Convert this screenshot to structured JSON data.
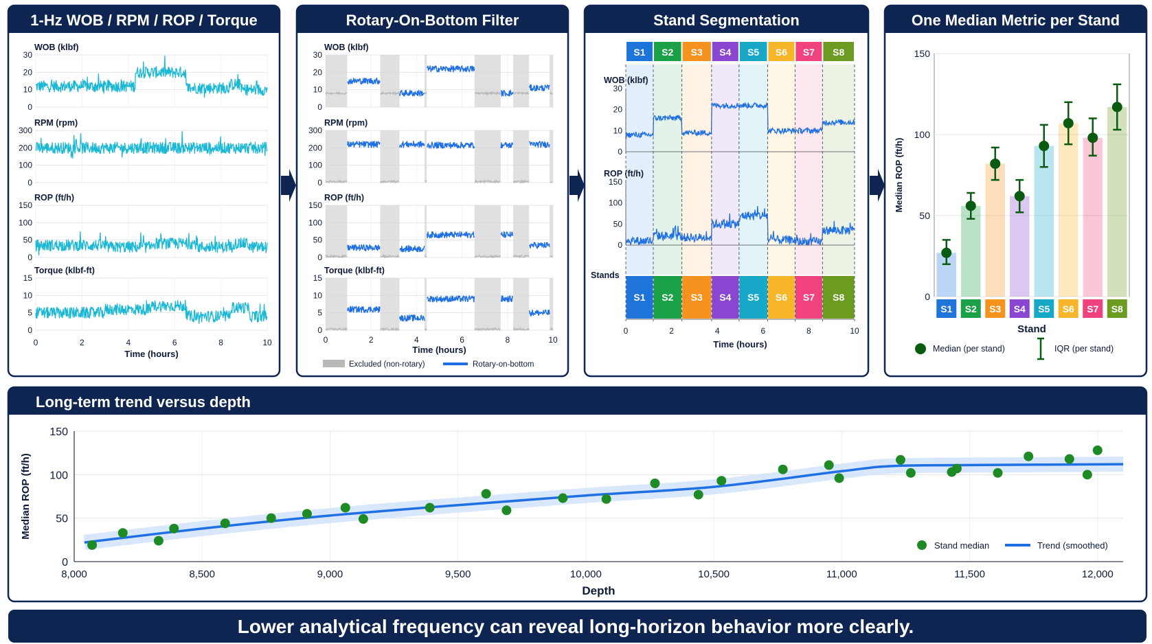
{
  "colors": {
    "navy": "#0d2550",
    "cyan": "#1bb8d6",
    "blue": "#1f6fe5",
    "gray": "#b8b8b8",
    "green": "#1e8a25",
    "dark_green": "#0b5a12",
    "stands": [
      "#1f74d9",
      "#1aa047",
      "#f5931e",
      "#8a45d1",
      "#17a8c7",
      "#f7b52a",
      "#f0427e",
      "#6b9c21"
    ]
  },
  "panels": {
    "raw": {
      "title": "1-Hz WOB / RPM / ROP / Torque"
    },
    "filter": {
      "title": "Rotary-On-Bottom Filter"
    },
    "segment": {
      "title": "Stand Segmentation"
    },
    "median": {
      "title": "One Median Metric per Stand"
    },
    "trend": {
      "title": "Long-term trend versus depth"
    }
  },
  "footer": {
    "text": "Lower analytical frequency can reveal long-horizon behavior more clearly."
  },
  "chart_data": [
    {
      "id": "raw",
      "type": "line",
      "xlabel": "Time (hours)",
      "x_ticks": [
        "0",
        "2",
        "4",
        "6",
        "8",
        "10"
      ],
      "xlim": [
        0,
        10
      ],
      "subplots": [
        {
          "label": "WOB (klbf)",
          "ylim": [
            0,
            30
          ],
          "y_ticks": [
            "0",
            "10",
            "20",
            "30"
          ],
          "levels": [
            [
              0,
              12
            ],
            [
              4.3,
              20
            ],
            [
              6.5,
              11
            ],
            [
              8.4,
              13
            ],
            [
              8.9,
              10
            ]
          ]
        },
        {
          "label": "RPM (rpm)",
          "ylim": [
            0,
            300
          ],
          "y_ticks": [
            "0",
            "100",
            "200",
            "300"
          ],
          "levels": [
            [
              0,
              200
            ]
          ]
        },
        {
          "label": "ROP (ft/h)",
          "ylim": [
            0,
            150
          ],
          "y_ticks": [
            "0",
            "50",
            "100",
            "150"
          ],
          "levels": [
            [
              0,
              35
            ],
            [
              3,
              30
            ],
            [
              5,
              40
            ],
            [
              7,
              30
            ],
            [
              8.5,
              40
            ],
            [
              9.2,
              30
            ]
          ]
        },
        {
          "label": "Torque (klbf-ft)",
          "ylim": [
            0,
            15
          ],
          "y_ticks": [
            "0",
            "5",
            "10",
            "15"
          ],
          "levels": [
            [
              0,
              5
            ],
            [
              3,
              6
            ],
            [
              5,
              7
            ],
            [
              6.5,
              4
            ],
            [
              8.4,
              6.5
            ],
            [
              9.2,
              4
            ]
          ]
        }
      ]
    },
    {
      "id": "filter",
      "type": "line",
      "xlabel": "Time (hours)",
      "x_ticks": [
        "0",
        "2",
        "4",
        "6",
        "8",
        "10"
      ],
      "xlim": [
        0,
        10
      ],
      "excluded_intervals": [
        [
          0,
          0.95
        ],
        [
          2.4,
          3.25
        ],
        [
          4.35,
          4.45
        ],
        [
          6.55,
          7.7
        ],
        [
          8.25,
          8.95
        ],
        [
          9.85,
          10
        ]
      ],
      "subplots": [
        {
          "label": "WOB (klbf)",
          "ylim": [
            0,
            30
          ],
          "y_ticks": [
            "0",
            "10",
            "20",
            "30"
          ],
          "levels": [
            [
              0.95,
              15
            ],
            [
              2.4,
              8
            ],
            [
              3.25,
              8
            ],
            [
              4.45,
              22
            ],
            [
              6.55,
              8
            ],
            [
              8.95,
              11
            ]
          ]
        },
        {
          "label": "RPM (rpm)",
          "ylim": [
            0,
            300
          ],
          "y_ticks": [
            "0",
            "100",
            "200",
            "300"
          ],
          "levels": [
            [
              0.95,
              220
            ],
            [
              3.25,
              220
            ],
            [
              4.45,
              215
            ],
            [
              8.95,
              220
            ]
          ]
        },
        {
          "label": "ROP (ft/h)",
          "ylim": [
            0,
            150
          ],
          "y_ticks": [
            "0",
            "50",
            "100",
            "150"
          ],
          "levels": [
            [
              0.95,
              28
            ],
            [
              3.25,
              25
            ],
            [
              4.45,
              65
            ],
            [
              8.95,
              35
            ]
          ]
        },
        {
          "label": "Torque (klbf-ft)",
          "ylim": [
            0,
            15
          ],
          "y_ticks": [
            "0",
            "5",
            "10",
            "15"
          ],
          "levels": [
            [
              0.95,
              6
            ],
            [
              3.25,
              3.5
            ],
            [
              4.45,
              9
            ],
            [
              8.95,
              5
            ]
          ]
        }
      ],
      "legend": [
        {
          "name": "Excluded (non-rotary)"
        },
        {
          "name": "Rotary-on-bottom"
        }
      ]
    },
    {
      "id": "segmentation",
      "type": "line",
      "xlabel": "Time (hours)",
      "x_ticks": [
        "0",
        "2",
        "4",
        "6",
        "8",
        "10"
      ],
      "xlim": [
        0,
        10
      ],
      "stands": [
        "S1",
        "S2",
        "S3",
        "S4",
        "S5",
        "S6",
        "S7",
        "S8"
      ],
      "stand_bounds": [
        0,
        1.2,
        2.45,
        3.75,
        4.95,
        6.2,
        7.4,
        8.6,
        10
      ],
      "stands_label": "Stands",
      "subplots": [
        {
          "label": "WOB (klbf)",
          "ylim": [
            0,
            30
          ],
          "y_ticks": [
            "0",
            "10",
            "20",
            "30"
          ],
          "levels": [
            [
              0,
              8
            ],
            [
              1.2,
              16
            ],
            [
              2.45,
              9
            ],
            [
              3.75,
              22
            ],
            [
              6.2,
              10
            ],
            [
              8.6,
              14
            ]
          ]
        },
        {
          "label": "ROP (ft/h)",
          "ylim": [
            0,
            150
          ],
          "y_ticks": [
            "0",
            "50",
            "100",
            "150"
          ],
          "levels": [
            [
              0,
              10
            ],
            [
              1.2,
              22
            ],
            [
              2.45,
              18
            ],
            [
              3.75,
              50
            ],
            [
              5.0,
              70
            ],
            [
              6.2,
              12
            ],
            [
              7.4,
              8
            ],
            [
              8.6,
              35
            ]
          ]
        }
      ]
    },
    {
      "id": "median_per_stand",
      "type": "bar",
      "categories": [
        "S1",
        "S2",
        "S3",
        "S4",
        "S5",
        "S6",
        "S7",
        "S8"
      ],
      "values": [
        27,
        56,
        82,
        62,
        93,
        107,
        98,
        117
      ],
      "iqr_low": [
        20,
        48,
        72,
        52,
        80,
        94,
        87,
        103
      ],
      "iqr_high": [
        35,
        64,
        92,
        72,
        106,
        120,
        110,
        131
      ],
      "xlabel": "Stand",
      "ylabel": "Median ROP (ft/h)",
      "ylim": [
        0,
        150
      ],
      "y_ticks": [
        "0",
        "50",
        "100",
        "150"
      ],
      "legend": [
        {
          "name": "Median (per stand)"
        },
        {
          "name": "IQR (per stand)"
        }
      ],
      "legend_position": "bottom"
    },
    {
      "id": "trend",
      "type": "scatter",
      "xlabel": "Depth",
      "ylabel": "Median ROP (ft/h)",
      "xlim": [
        8000,
        12100
      ],
      "ylim": [
        0,
        150
      ],
      "x_ticks": [
        "8,000",
        "8,500",
        "9,000",
        "9,500",
        "10,000",
        "10,500",
        "11,000",
        "11,500",
        "12,000"
      ],
      "y_ticks": [
        "0",
        "50",
        "100",
        "150"
      ],
      "points": [
        [
          8070,
          19
        ],
        [
          8190,
          33
        ],
        [
          8330,
          24
        ],
        [
          8390,
          38
        ],
        [
          8590,
          44
        ],
        [
          8770,
          50
        ],
        [
          8910,
          55
        ],
        [
          9060,
          62
        ],
        [
          9130,
          49
        ],
        [
          9390,
          62
        ],
        [
          9610,
          78
        ],
        [
          9690,
          59
        ],
        [
          9910,
          73
        ],
        [
          10080,
          72
        ],
        [
          10270,
          90
        ],
        [
          10440,
          77
        ],
        [
          10530,
          93
        ],
        [
          10770,
          106
        ],
        [
          10950,
          111
        ],
        [
          10990,
          96
        ],
        [
          11230,
          117
        ],
        [
          11270,
          102
        ],
        [
          11430,
          103
        ],
        [
          11450,
          107
        ],
        [
          11610,
          102
        ],
        [
          11730,
          121
        ],
        [
          11890,
          118
        ],
        [
          11960,
          100
        ],
        [
          12000,
          128
        ]
      ],
      "trend": [
        [
          8040,
          22
        ],
        [
          8500,
          38
        ],
        [
          9000,
          53
        ],
        [
          9500,
          65
        ],
        [
          10000,
          76
        ],
        [
          10500,
          86
        ],
        [
          11000,
          104
        ],
        [
          11200,
          110
        ],
        [
          11500,
          111
        ],
        [
          12100,
          112
        ]
      ],
      "legend": [
        {
          "name": "Stand median"
        },
        {
          "name": "Trend (smoothed)"
        }
      ],
      "legend_position": "bottom-right"
    }
  ]
}
